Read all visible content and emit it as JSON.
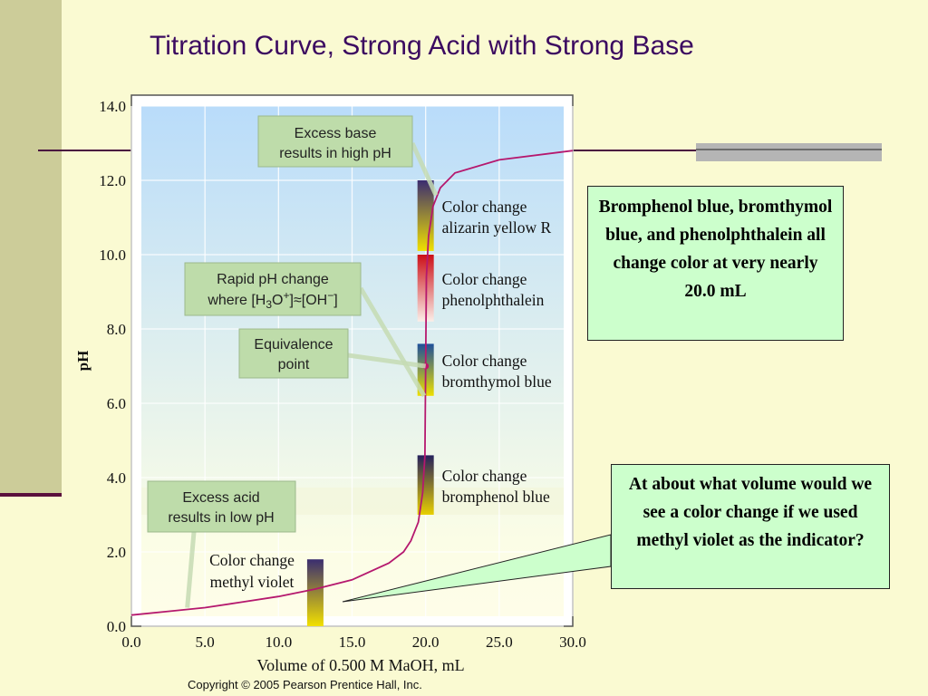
{
  "slide": {
    "title": "Titration Curve, Strong Acid with Strong Base",
    "copyright": "Copyright © 2005 Pearson Prentice Hall, Inc."
  },
  "chart_data": {
    "type": "line",
    "xlabel": "Volume of 0.500 M MaOH, mL",
    "ylabel": "pH",
    "xlim": [
      0,
      30
    ],
    "ylim": [
      0,
      14
    ],
    "grid": true,
    "x_ticks": [
      "0.0",
      "5.0",
      "10.0",
      "15.0",
      "20.0",
      "25.0",
      "30.0"
    ],
    "y_ticks": [
      "0.0",
      "2.0",
      "4.0",
      "6.0",
      "8.0",
      "10.0",
      "12.0",
      "14.0"
    ],
    "series": [
      {
        "x": [
          0,
          2.5,
          5,
          7.5,
          10,
          12.5,
          15,
          17.5,
          18.5,
          19,
          19.5,
          19.8,
          19.95,
          20,
          20.05,
          20.2,
          20.5,
          21,
          22,
          25,
          30
        ],
        "y": [
          0.3,
          0.4,
          0.5,
          0.65,
          0.8,
          1.0,
          1.25,
          1.7,
          2.0,
          2.3,
          2.8,
          3.6,
          4.6,
          7.0,
          9.4,
          10.5,
          11.3,
          11.8,
          12.2,
          12.55,
          12.8
        ]
      }
    ],
    "equivalence_point": {
      "x": 20.0,
      "y": 7.0
    },
    "indicators": [
      {
        "label_line1": "Color change",
        "label_line2": "alizarin yellow R",
        "x": 20.0,
        "ph_low": 10.1,
        "ph_high": 12.0,
        "colors": [
          "#f0e000",
          "#3b2d70"
        ]
      },
      {
        "label_line1": "Color change",
        "label_line2": "phenolphthalein",
        "x": 20.0,
        "ph_low": 8.2,
        "ph_high": 10.0,
        "colors": [
          "#fbeee8",
          "#cc1018"
        ]
      },
      {
        "label_line1": "Color change",
        "label_line2": "bromthymol blue",
        "x": 20.0,
        "ph_low": 6.2,
        "ph_high": 7.6,
        "colors": [
          "#eee000",
          "#1e4f9a"
        ]
      },
      {
        "label_line1": "Color change",
        "label_line2": "bromphenol blue",
        "x": 20.0,
        "ph_low": 3.0,
        "ph_high": 4.6,
        "colors": [
          "#e8d000",
          "#25205c"
        ]
      },
      {
        "label_line1": "Color change",
        "label_line2": "methyl violet",
        "x": 12.5,
        "ph_low": 0.0,
        "ph_high": 1.8,
        "colors": [
          "#f2e000",
          "#3a2d70"
        ]
      }
    ],
    "callouts": [
      {
        "line1": "Excess base",
        "line2": "results in high pH"
      },
      {
        "line1": "Rapid pH change",
        "line2": "where [H",
        "sub": "3",
        "mid": "O",
        "sup": "+",
        "rest": "]≈[OH",
        "sup2": "−",
        "end": "]"
      },
      {
        "line1": "Equivalence",
        "line2": "point"
      },
      {
        "line1": "Excess acid",
        "line2": "results in low pH"
      }
    ]
  },
  "notes": [
    "Bromphenol blue, bromthymol blue, and phenolphthalein all change color at very nearly 20.0 mL",
    "At about what volume would we see a color change if we used methyl violet as the indicator?"
  ]
}
